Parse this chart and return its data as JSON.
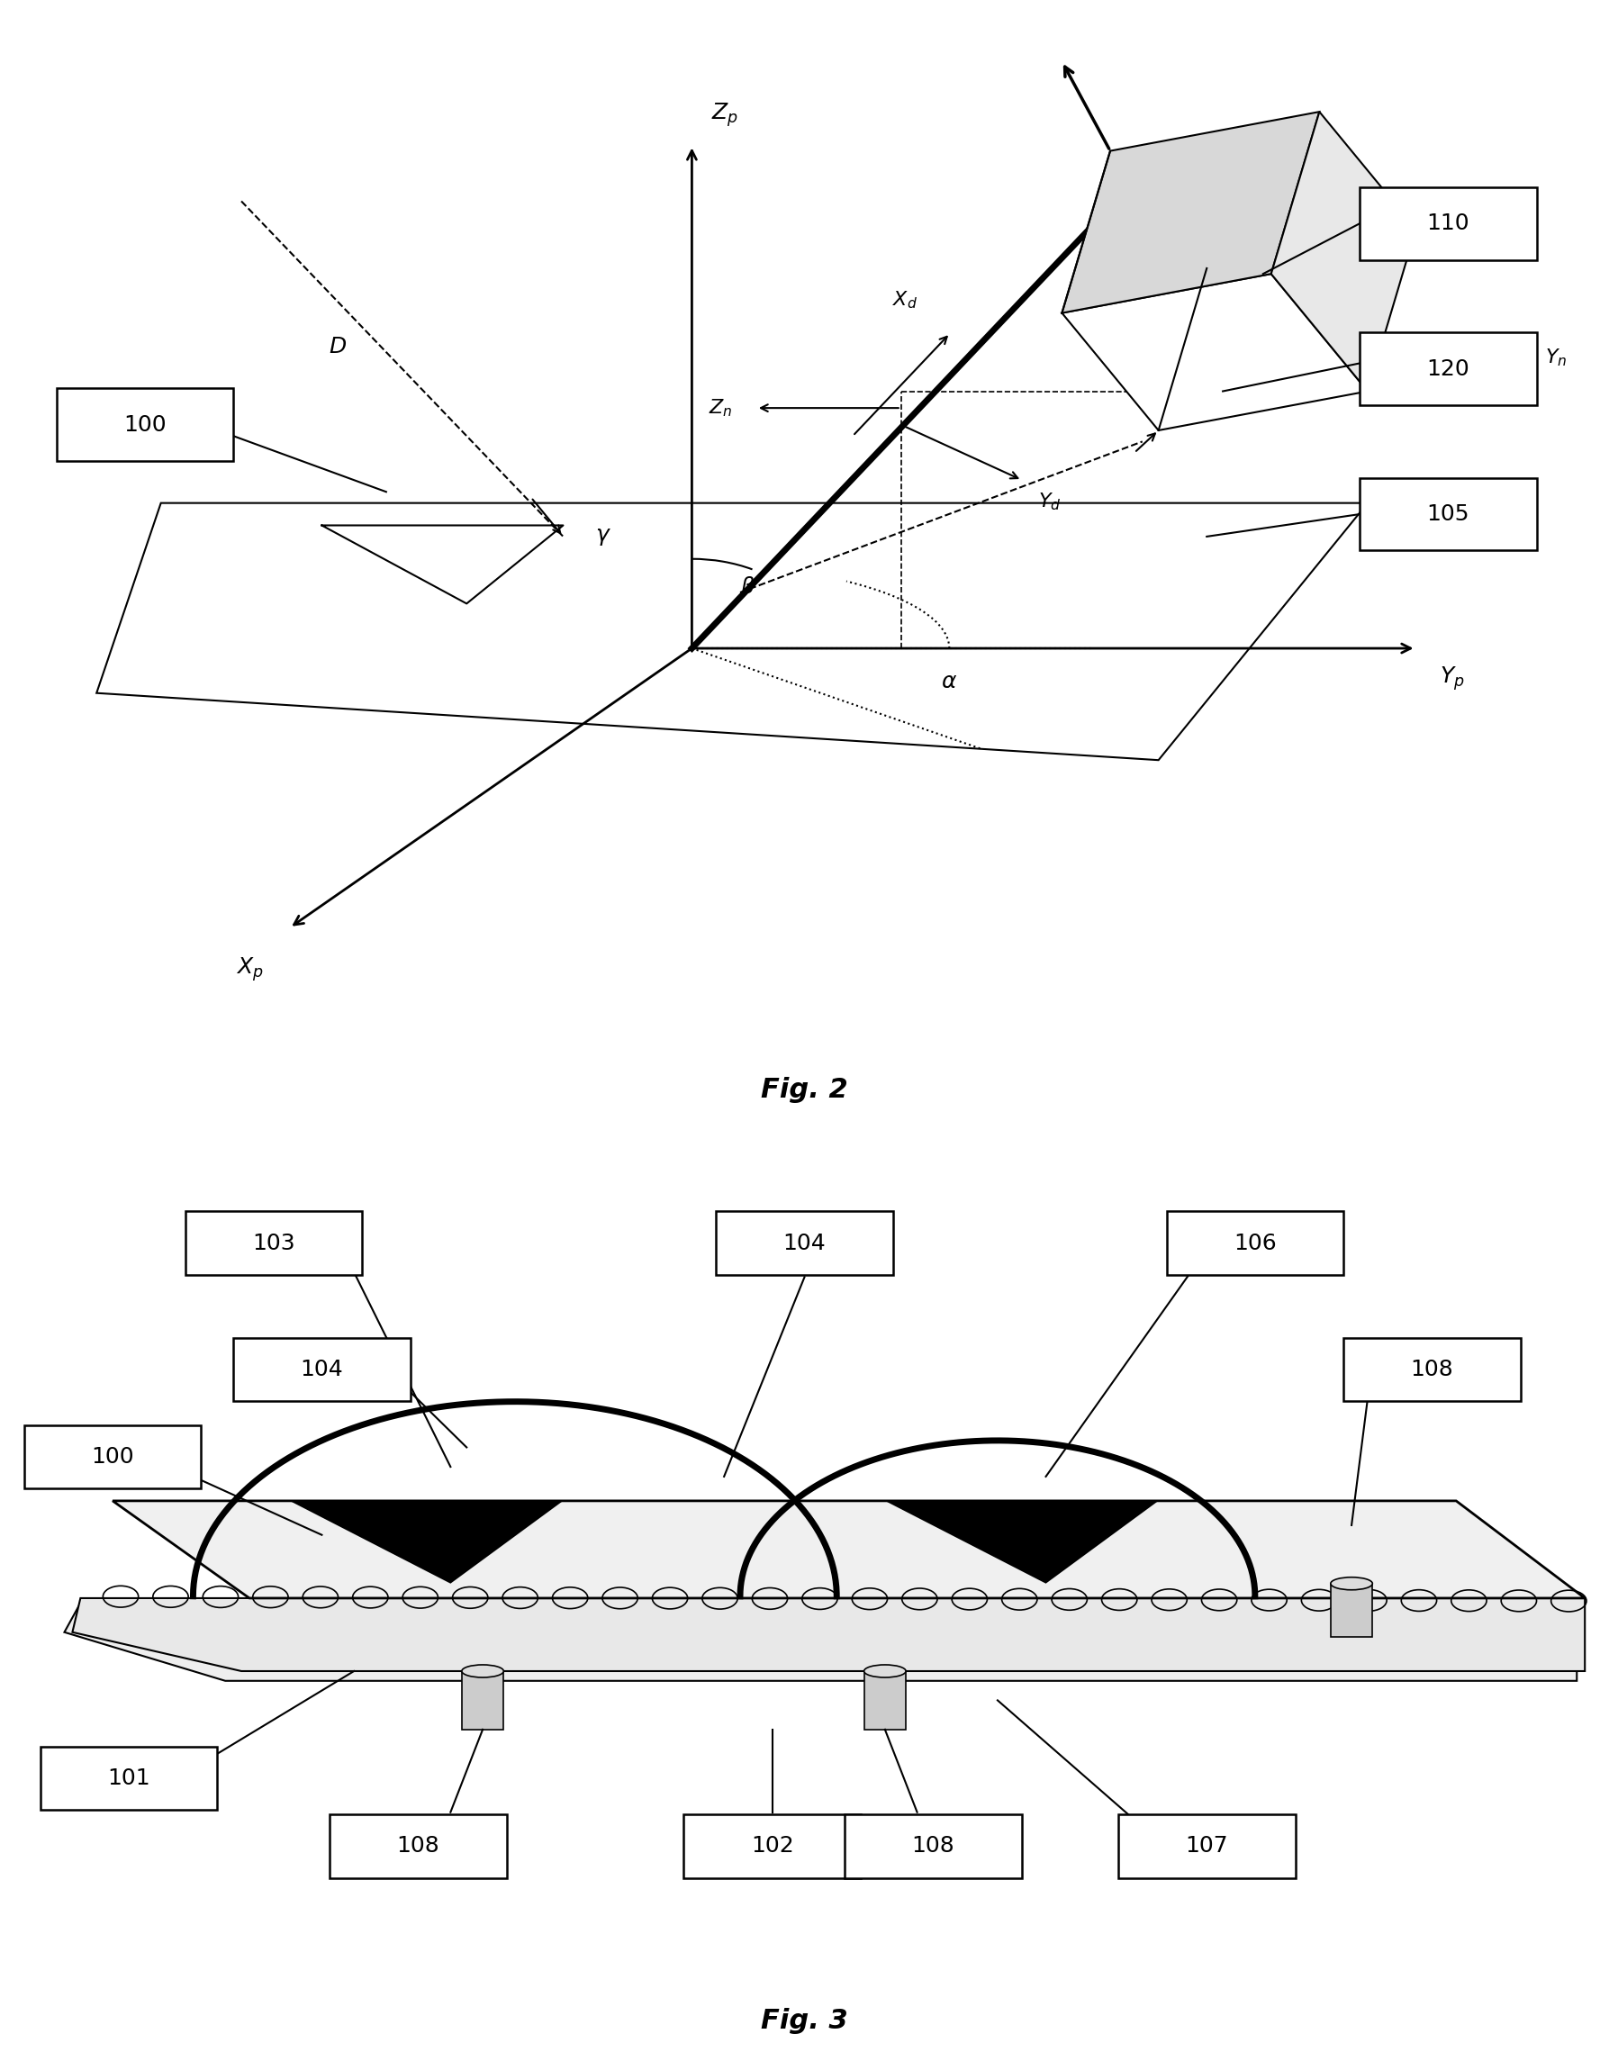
{
  "fig2_title": "Fig. 2",
  "fig3_title": "Fig. 3",
  "background_color": "#ffffff",
  "lw_thick": 4.0,
  "lw_medium": 2.0,
  "lw_thin": 1.5,
  "lw_dash": 1.5,
  "fs_label": 18,
  "fs_title": 22
}
